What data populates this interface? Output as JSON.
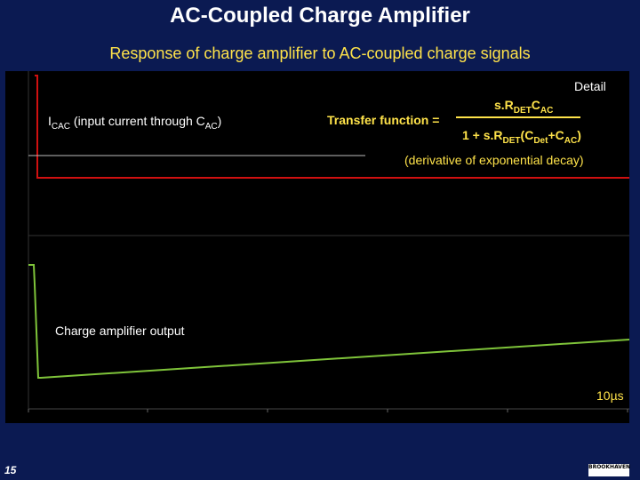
{
  "title": "AC-Coupled Charge Amplifier",
  "subtitle": "Response of charge amplifier to AC-coupled charge signals",
  "upper_plot_label_prefix": "I",
  "upper_plot_label_sub": "CAC",
  "upper_plot_label_mid": " (input current through C",
  "upper_plot_label_sub2": "AC",
  "upper_plot_label_end": ")",
  "transfer_label": "Transfer function =",
  "numerator_prefix": "s.R",
  "numerator_sub1": "DET",
  "numerator_mid": "C",
  "numerator_sub2": "AC",
  "denominator_prefix": "1 + s.R",
  "denominator_sub1": "DET",
  "denominator_mid": "(C",
  "denominator_sub2": "Det",
  "denominator_mid2": "+C",
  "denominator_sub3": "AC",
  "denominator_end": ")",
  "derivative_note": "(derivative of exponential decay)",
  "detail_label": "Detail",
  "output_label": "Charge amplifier output",
  "scale_label": "10µs",
  "slide_number": "15",
  "logo_text": "BROOKHAVEN",
  "colors": {
    "background": "#0b1a52",
    "title": "#ffffff",
    "subtitle": "#ffe34a",
    "current_trace": "#d01010",
    "output_trace": "#7fc43a"
  }
}
